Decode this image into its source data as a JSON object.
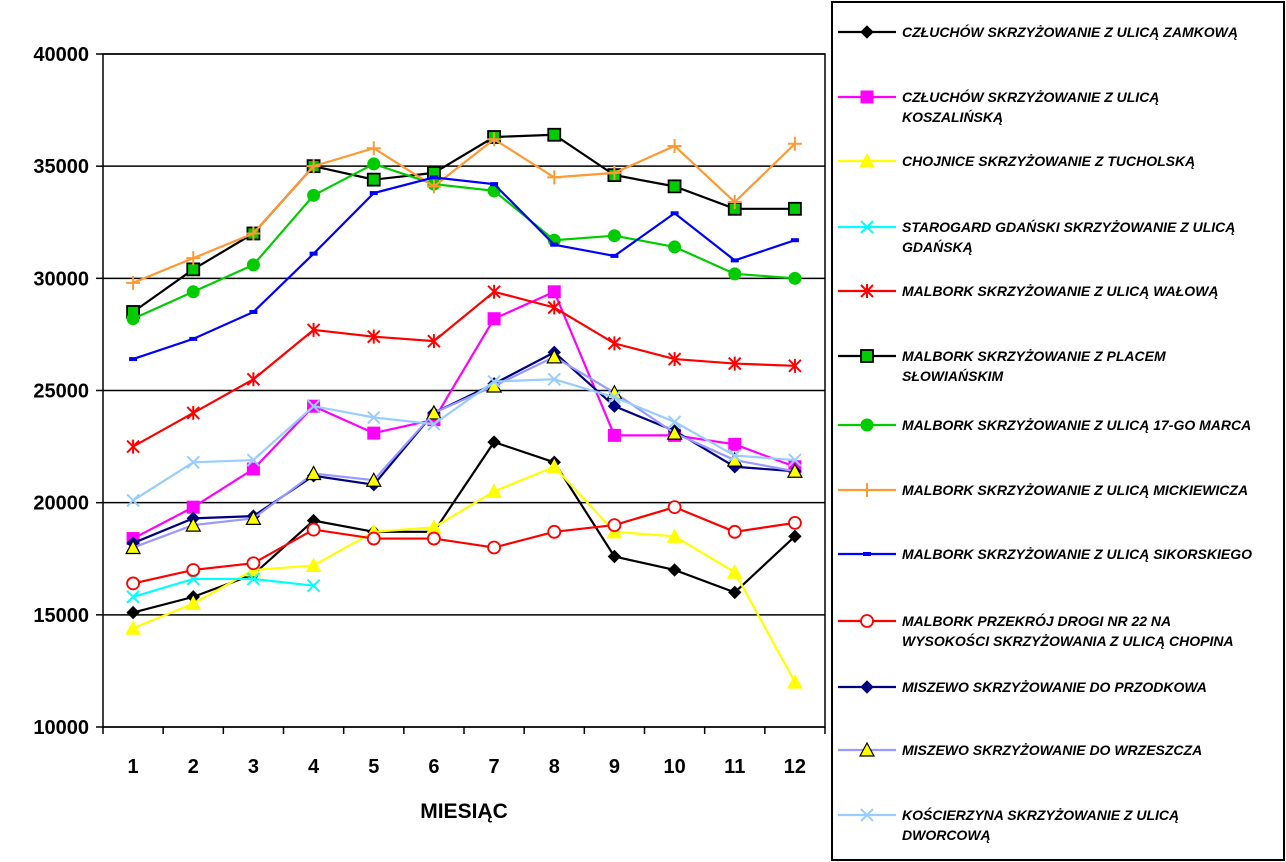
{
  "chart_data": {
    "type": "line",
    "xlabel": "MIESIĄC",
    "ylabel": "",
    "ylim": [
      10000,
      40000
    ],
    "yticks": [
      10000,
      15000,
      20000,
      25000,
      30000,
      35000,
      40000
    ],
    "categories": [
      "1",
      "2",
      "3",
      "4",
      "5",
      "6",
      "7",
      "8",
      "9",
      "10",
      "11",
      "12"
    ],
    "grid": "horizontal",
    "legend_position": "right",
    "series": [
      {
        "name": "CZŁUCHÓW SKRZYŻOWANIE Z ULICĄ ZAMKOWĄ",
        "color": "#000000",
        "marker": "diamond",
        "values": [
          15100,
          15800,
          16800,
          19200,
          18700,
          18700,
          22700,
          21800,
          17600,
          17000,
          16000,
          18500
        ]
      },
      {
        "name": "CZŁUCHÓW SKRZYŻOWANIE Z ULICĄ KOSZALIŃSKĄ",
        "color": "#FF00FF",
        "marker": "square",
        "values": [
          18400,
          19800,
          21500,
          24300,
          23100,
          23700,
          28200,
          29400,
          23000,
          23000,
          22600,
          21600
        ]
      },
      {
        "name": "CHOJNICE SKRZYŻOWANIE Z TUCHOLSKĄ",
        "color": "#FFFF00",
        "marker": "triangle",
        "values": [
          14400,
          15500,
          17000,
          17200,
          18700,
          18900,
          20500,
          21600,
          18700,
          18500,
          16900,
          12000
        ]
      },
      {
        "name": "STAROGARD GDAŃSKI SKRZYŻOWANIE Z ULICĄ GDAŃSKĄ",
        "color": "#00FFFF",
        "marker": "x",
        "values": [
          15800,
          16600,
          16600,
          16300,
          null,
          null,
          null,
          null,
          null,
          null,
          null,
          null
        ]
      },
      {
        "name": "MALBORK SKRZYŻOWANIE Z ULICĄ WAŁOWĄ",
        "color": "#FF0000",
        "marker": "star",
        "values": [
          22500,
          24000,
          25500,
          27700,
          27400,
          27200,
          29400,
          28700,
          27100,
          26400,
          26200,
          26100
        ]
      },
      {
        "name": "MALBORK SKRZYŻOWANIE Z PLACEM SŁOWIAŃSKIM",
        "color": "#000000",
        "marker": "square-green",
        "values": [
          28500,
          30400,
          32000,
          35000,
          34400,
          34700,
          36300,
          36400,
          34600,
          34100,
          33100,
          33100
        ]
      },
      {
        "name": "MALBORK SKRZYŻOWANIE Z ULICĄ 17-GO MARCA",
        "color": "#00CC00",
        "marker": "circle",
        "values": [
          28200,
          29400,
          30600,
          33700,
          35100,
          34200,
          33900,
          31700,
          31900,
          31400,
          30200,
          30000
        ]
      },
      {
        "name": "MALBORK SKRZYŻOWANIE Z ULICĄ MICKIEWICZA",
        "color": "#FF9933",
        "marker": "plus",
        "values": [
          29800,
          30900,
          32000,
          35000,
          35800,
          34100,
          36200,
          34500,
          34700,
          35900,
          33400,
          36000
        ]
      },
      {
        "name": "MALBORK SKRZYŻOWANIE Z ULICĄ SIKORSKIEGO",
        "color": "#0000FF",
        "marker": "dash",
        "values": [
          26400,
          27300,
          28500,
          31100,
          33800,
          34500,
          34200,
          31500,
          31000,
          32900,
          30800,
          31700
        ]
      },
      {
        "name": "MALBORK PRZEKRÓJ DROGI NR 22 NA WYSOKOŚCI SKRZYŻOWANIA Z ULICĄ CHOPINA",
        "color": "#FF0000",
        "marker": "open-circle",
        "values": [
          16400,
          17000,
          17300,
          18800,
          18400,
          18400,
          18000,
          18700,
          19000,
          19800,
          18700,
          19100
        ]
      },
      {
        "name": "MISZEWO SKRZYŻOWANIE DO PRZODKOWA",
        "color": "#000080",
        "marker": "diamond-navy",
        "values": [
          18200,
          19300,
          19400,
          21200,
          20800,
          24000,
          25300,
          26700,
          24300,
          23200,
          21600,
          21400
        ]
      },
      {
        "name": "MISZEWO SKRZYŻOWANIE DO WRZESZCZA",
        "color": "#9999FF",
        "marker": "triangle-yellow",
        "values": [
          18000,
          19000,
          19300,
          21300,
          21000,
          24000,
          25200,
          26500,
          24900,
          23100,
          21900,
          21400
        ]
      },
      {
        "name": "KOŚCIERZYNA SKRZYŻOWANIE Z ULICĄ DWORCOWĄ",
        "color": "#99CCFF",
        "marker": "x",
        "values": [
          20100,
          21800,
          21900,
          24300,
          23800,
          23500,
          25400,
          25500,
          24700,
          23600,
          22100,
          21900
        ]
      }
    ]
  }
}
